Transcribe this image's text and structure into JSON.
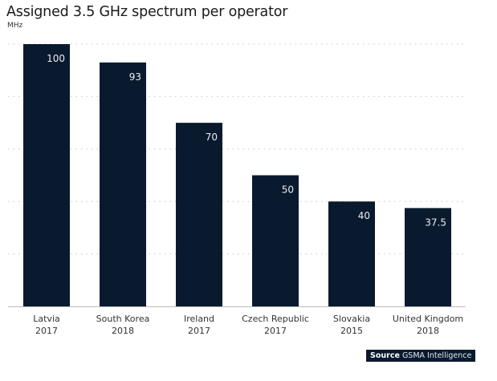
{
  "chart_data": {
    "type": "bar",
    "title": "Assigned 3.5 GHz spectrum per operator",
    "subtitle": "MHz",
    "categories": [
      {
        "name": "Latvia",
        "year": "2017"
      },
      {
        "name": "South Korea",
        "year": "2018"
      },
      {
        "name": "Ireland",
        "year": "2017"
      },
      {
        "name": "Czech Republic",
        "year": "2017"
      },
      {
        "name": "Slovakia",
        "year": "2015"
      },
      {
        "name": "United Kingdom",
        "year": "2018"
      }
    ],
    "values": [
      100,
      93,
      70,
      50,
      40,
      37.5
    ],
    "data_labels": [
      "100",
      "93",
      "70",
      "50",
      "40",
      "37.5"
    ],
    "ylim": [
      0,
      100
    ],
    "grid": true,
    "bar_color": "#0a1a2e",
    "source_label": "Source",
    "source_text": "GSMA Intelligence"
  }
}
